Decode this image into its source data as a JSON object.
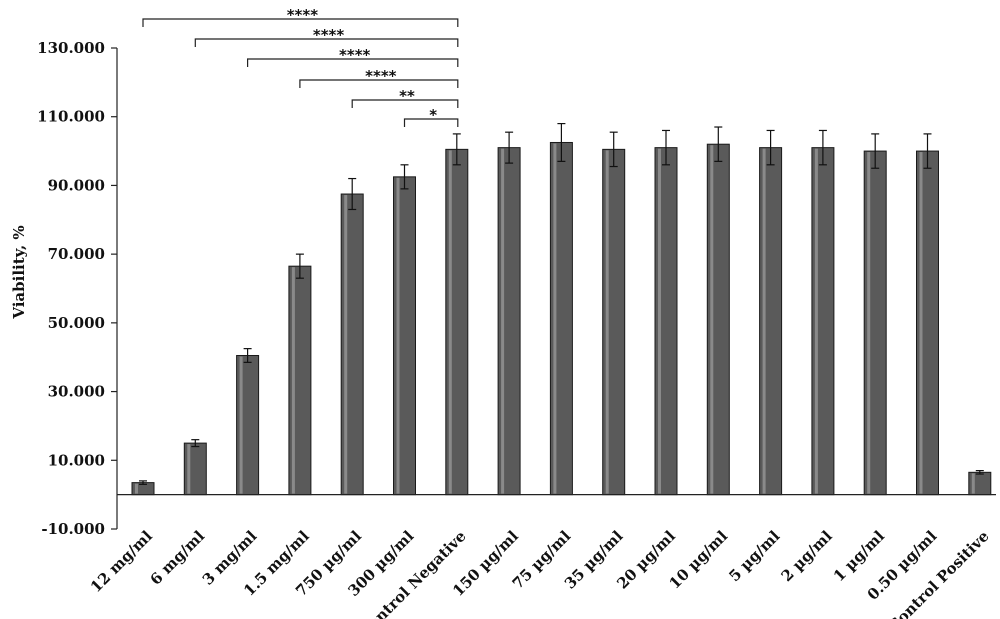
{
  "chart_data": {
    "type": "bar",
    "ylabel": "Viability, %",
    "xlabel": "",
    "ylim": [
      -10,
      130
    ],
    "yticks": [
      -10,
      10,
      30,
      50,
      70,
      90,
      110,
      130
    ],
    "ytick_labels": [
      "-10.000",
      "10.000",
      "30.000",
      "50.000",
      "70.000",
      "90.000",
      "110.000",
      "130.000"
    ],
    "grid": false,
    "legend": "none",
    "bar_color": "#5a5a5a",
    "categories": [
      "12 mg/ml",
      "6 mg/ml",
      "3 mg/ml",
      "1.5 mg/ml",
      "750 µg/ml",
      "300 µg/ml",
      "Control Negative",
      "150 µg/ml",
      "75 µg/ml",
      "35 µg/ml",
      "20 µg/ml",
      "10 µg/ml",
      "5 µg/ml",
      "2 µg/ml",
      "1 µg/ml",
      "0.50 µg/ml",
      "Control Positive"
    ],
    "values": [
      3.5,
      15.0,
      40.5,
      66.5,
      87.5,
      92.5,
      100.5,
      101.0,
      102.5,
      100.5,
      101.0,
      102.0,
      101.0,
      101.0,
      100.0,
      100.0,
      6.5
    ],
    "errors": [
      0.5,
      1.0,
      2.0,
      3.5,
      4.5,
      3.5,
      4.5,
      4.5,
      5.5,
      5.0,
      5.0,
      5.0,
      5.0,
      5.0,
      5.0,
      5.0,
      0.5
    ],
    "significance": [
      {
        "from": "12 mg/ml",
        "to": "Control Negative",
        "label": "****"
      },
      {
        "from": "6 mg/ml",
        "to": "Control Negative",
        "label": "****"
      },
      {
        "from": "3 mg/ml",
        "to": "Control Negative",
        "label": "****"
      },
      {
        "from": "1.5 mg/ml",
        "to": "Control Negative",
        "label": "****"
      },
      {
        "from": "750 µg/ml",
        "to": "Control Negative",
        "label": "**"
      },
      {
        "from": "300 µg/ml",
        "to": "Control Negative",
        "label": "*"
      }
    ]
  }
}
